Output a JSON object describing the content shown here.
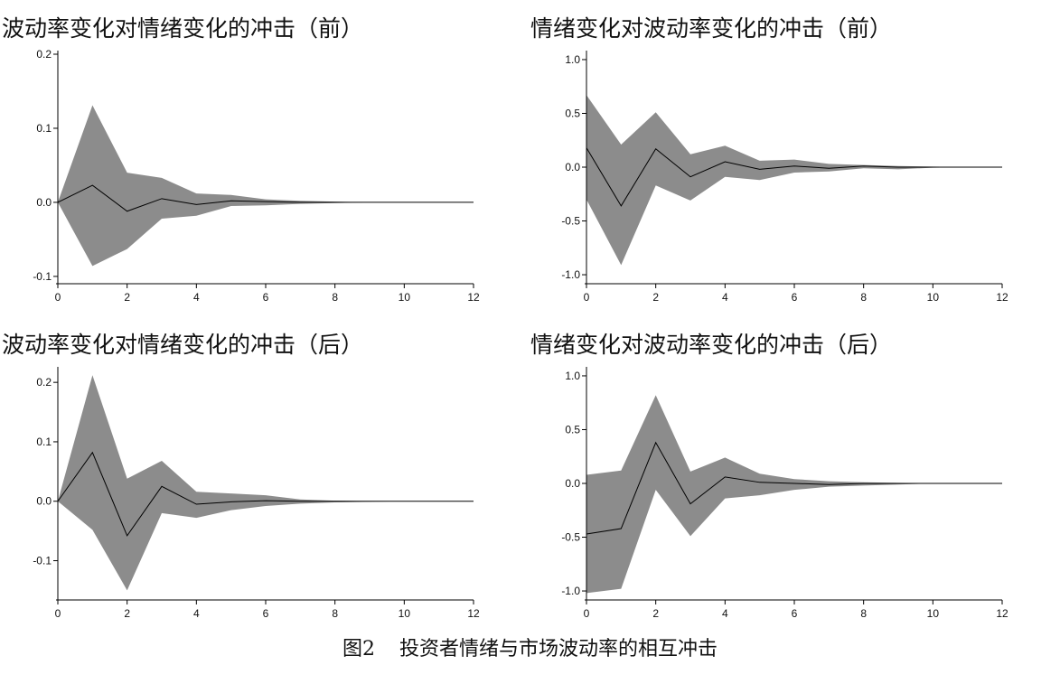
{
  "figure": {
    "number": "图2",
    "caption": "投资者情绪与市场波动率的相互冲击"
  },
  "colors": {
    "band": "#8c8c8c",
    "line": "#000000",
    "axis": "#000000"
  },
  "chart_data": [
    {
      "type": "area",
      "title": "波动率变化对情绪变化的冲击（前）",
      "x": [
        0,
        1,
        2,
        3,
        4,
        5,
        6,
        7,
        8,
        9,
        10,
        11,
        12
      ],
      "xticks": [
        0,
        2,
        4,
        6,
        8,
        10,
        12
      ],
      "xtick_labels": [
        "0",
        "2",
        "4",
        "6",
        "8",
        "10",
        "12"
      ],
      "yticks": [
        -0.1,
        0,
        0.1,
        0.2
      ],
      "ytick_labels": [
        "-0.1",
        "0.0",
        "0.1",
        "0.2"
      ],
      "xlim": [
        0,
        12
      ],
      "ylim": [
        -0.105,
        0.2
      ],
      "series": [
        {
          "role": "irf",
          "values": [
            0,
            0.023,
            -0.012,
            0.005,
            -0.003,
            0.002,
            0.001,
            0,
            0,
            0,
            0,
            0,
            0
          ]
        },
        {
          "role": "upper",
          "values": [
            0,
            0.131,
            0.04,
            0.033,
            0.012,
            0.01,
            0.004,
            0.002,
            0.001,
            0,
            0,
            0,
            0
          ]
        },
        {
          "role": "lower",
          "values": [
            0,
            -0.086,
            -0.063,
            -0.022,
            -0.018,
            -0.005,
            -0.004,
            -0.002,
            -0.001,
            0,
            0,
            0,
            0
          ]
        }
      ]
    },
    {
      "type": "area",
      "title": "情绪变化对波动率变化的冲击（前）",
      "x": [
        0,
        1,
        2,
        3,
        4,
        5,
        6,
        7,
        8,
        9,
        10,
        11,
        12
      ],
      "xticks": [
        0,
        2,
        4,
        6,
        8,
        10,
        12
      ],
      "xtick_labels": [
        "0",
        "2",
        "4",
        "6",
        "8",
        "10",
        "12"
      ],
      "yticks": [
        -1.0,
        -0.5,
        0,
        0.5,
        1.0
      ],
      "ytick_labels": [
        "-1.0",
        "-0.5",
        "0.0",
        "0.5",
        "1.0"
      ],
      "xlim": [
        0,
        12
      ],
      "ylim": [
        -1.05,
        1.05
      ],
      "series": [
        {
          "role": "irf",
          "values": [
            0.18,
            -0.36,
            0.17,
            -0.09,
            0.05,
            -0.02,
            0.01,
            -0.01,
            0.01,
            0,
            0,
            0,
            0
          ]
        },
        {
          "role": "upper",
          "values": [
            0.67,
            0.21,
            0.51,
            0.12,
            0.2,
            0.06,
            0.07,
            0.03,
            0.02,
            0.01,
            0.005,
            0,
            0
          ]
        },
        {
          "role": "lower",
          "values": [
            -0.3,
            -0.91,
            -0.17,
            -0.31,
            -0.09,
            -0.12,
            -0.05,
            -0.04,
            -0.01,
            -0.02,
            -0.005,
            0,
            0
          ]
        }
      ]
    },
    {
      "type": "area",
      "title": "波动率变化对情绪变化的冲击（后）",
      "x": [
        0,
        1,
        2,
        3,
        4,
        5,
        6,
        7,
        8,
        9,
        10,
        11,
        12
      ],
      "xticks": [
        0,
        2,
        4,
        6,
        8,
        10,
        12
      ],
      "xtick_labels": [
        "0",
        "2",
        "4",
        "6",
        "8",
        "10",
        "12"
      ],
      "yticks": [
        -0.1,
        0,
        0.1,
        0.2
      ],
      "ytick_labels": [
        "-0.1",
        "0.0",
        "0.1",
        "0.2"
      ],
      "xlim": [
        0,
        12
      ],
      "ylim": [
        -0.16,
        0.22
      ],
      "series": [
        {
          "role": "irf",
          "values": [
            0,
            0.082,
            -0.058,
            0.025,
            -0.005,
            -0.001,
            0.001,
            0,
            0,
            0,
            0,
            0,
            0
          ]
        },
        {
          "role": "upper",
          "values": [
            0,
            0.212,
            0.038,
            0.068,
            0.016,
            0.013,
            0.01,
            0.003,
            0.001,
            0,
            0,
            0,
            0
          ]
        },
        {
          "role": "lower",
          "values": [
            0,
            -0.048,
            -0.15,
            -0.02,
            -0.028,
            -0.015,
            -0.008,
            -0.004,
            -0.002,
            -0.001,
            0,
            0,
            0
          ]
        }
      ]
    },
    {
      "type": "area",
      "title": "情绪变化对波动率变化的冲击（后）",
      "x": [
        0,
        1,
        2,
        3,
        4,
        5,
        6,
        7,
        8,
        9,
        10,
        11,
        12
      ],
      "xticks": [
        0,
        2,
        4,
        6,
        8,
        10,
        12
      ],
      "xtick_labels": [
        "0",
        "2",
        "4",
        "6",
        "8",
        "10",
        "12"
      ],
      "yticks": [
        -1.0,
        -0.5,
        0,
        0.5,
        1.0
      ],
      "ytick_labels": [
        "-1.0",
        "-0.5",
        "0.0",
        "0.5",
        "1.0"
      ],
      "xlim": [
        0,
        12
      ],
      "ylim": [
        -1.05,
        1.05
      ],
      "series": [
        {
          "role": "irf",
          "values": [
            -0.47,
            -0.42,
            0.38,
            -0.19,
            0.06,
            0.01,
            0,
            -0.01,
            0,
            0,
            0,
            0,
            0
          ]
        },
        {
          "role": "upper",
          "values": [
            0.08,
            0.12,
            0.82,
            0.11,
            0.24,
            0.09,
            0.04,
            0.02,
            0.01,
            0.005,
            0,
            0,
            0
          ]
        },
        {
          "role": "lower",
          "values": [
            -1.02,
            -0.98,
            -0.06,
            -0.49,
            -0.14,
            -0.11,
            -0.06,
            -0.03,
            -0.02,
            -0.01,
            0,
            0,
            0
          ]
        }
      ]
    }
  ]
}
